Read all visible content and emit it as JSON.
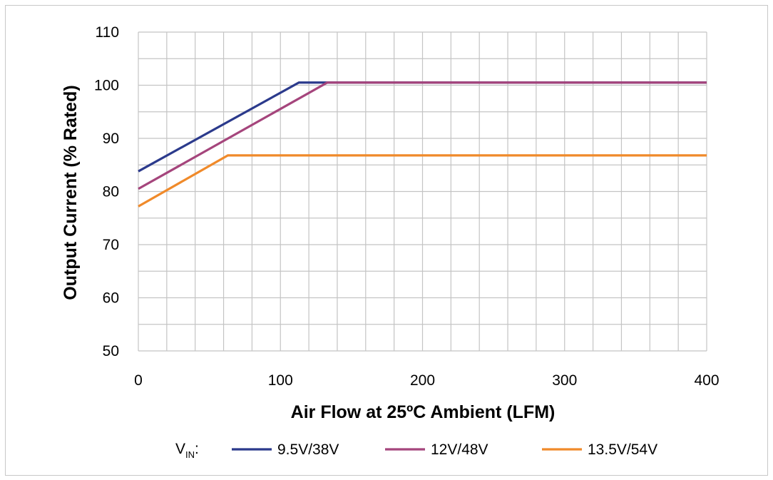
{
  "chart_data": {
    "type": "line",
    "title": "",
    "xlabel": "Air Flow at 25ºC Ambient (LFM)",
    "ylabel": "Output Current (% Rated)",
    "xlim": [
      0,
      400
    ],
    "ylim": [
      50,
      110
    ],
    "x_ticks": [
      0,
      100,
      200,
      300,
      400
    ],
    "y_ticks": [
      50,
      60,
      70,
      80,
      90,
      100,
      110
    ],
    "x_tick_labels": [
      "0",
      "100",
      "200",
      "300",
      "400"
    ],
    "y_tick_labels": [
      "50",
      "60",
      "70",
      "80",
      "90",
      "100",
      "110"
    ],
    "x_minor_step": 20,
    "y_minor_step": 5,
    "grid": true,
    "legend_position": "bottom",
    "legend_prefix": {
      "main": "V",
      "sub": "IN",
      "suffix": ":"
    },
    "series": [
      {
        "name": "9.5V/38V",
        "color": "#2b3a8c",
        "x": [
          0,
          113,
          400
        ],
        "y": [
          83.8,
          100.5,
          100.5
        ]
      },
      {
        "name": "12V/48V",
        "color": "#a5457c",
        "x": [
          0,
          133,
          400
        ],
        "y": [
          80.5,
          100.5,
          100.5
        ]
      },
      {
        "name": "13.5V/54V",
        "color": "#f08a2a",
        "x": [
          0,
          63,
          400
        ],
        "y": [
          77.2,
          86.8,
          86.8
        ]
      }
    ]
  }
}
